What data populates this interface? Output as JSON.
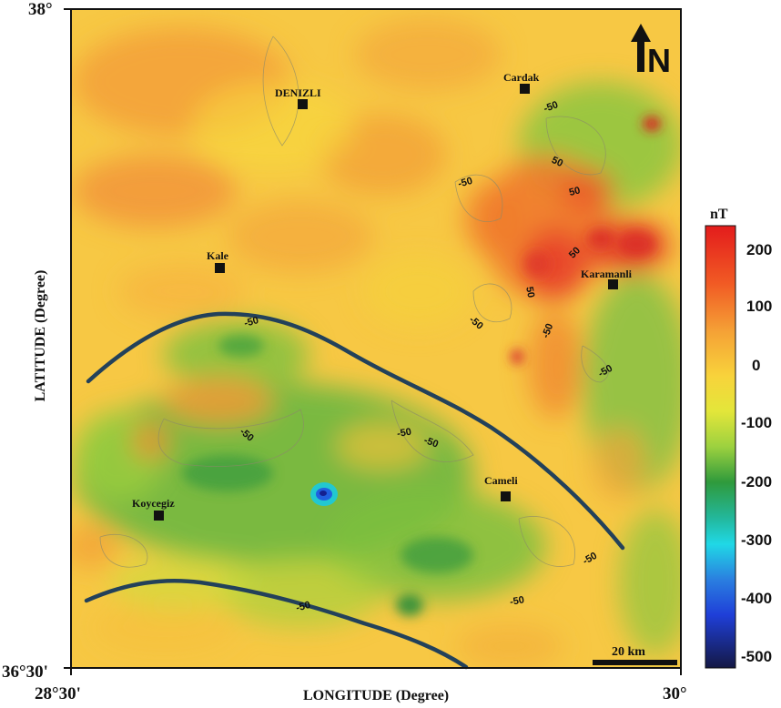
{
  "map": {
    "axes": {
      "xlabel": "LONGITUDE (Degree)",
      "ylabel": "LATITUDE (Degree)",
      "top_left_lat": "38°",
      "bottom_left_lat": "36°30'",
      "bottom_left_lon": "28°30'",
      "bottom_right_lon": "30°"
    },
    "north_arrow": {
      "label": "N"
    },
    "scale_bar": {
      "label": "20 km"
    },
    "cities": [
      {
        "name": "DENIZLI"
      },
      {
        "name": "Cardak"
      },
      {
        "name": "Kale"
      },
      {
        "name": "Karamanli"
      },
      {
        "name": "Cameli"
      },
      {
        "name": "Koycegiz"
      }
    ],
    "contour_labels": [
      "-50",
      "-50",
      "50",
      "50",
      "50",
      "50",
      "-50",
      "-50",
      "-50",
      "-50",
      "-50",
      "-50",
      "-50",
      "-50",
      "-50",
      "-50"
    ],
    "colorbar": {
      "unit": "nT",
      "ticks": [
        "200",
        "100",
        "0",
        "-100",
        "-200",
        "-300",
        "-400",
        "-500"
      ],
      "colors": [
        "#e31c1c",
        "#f27a28",
        "#f7b93a",
        "#f4e33a",
        "#a8d23e",
        "#2f9a3c",
        "#20d8d8",
        "#1f3fd8",
        "#1a1f6a"
      ]
    }
  }
}
